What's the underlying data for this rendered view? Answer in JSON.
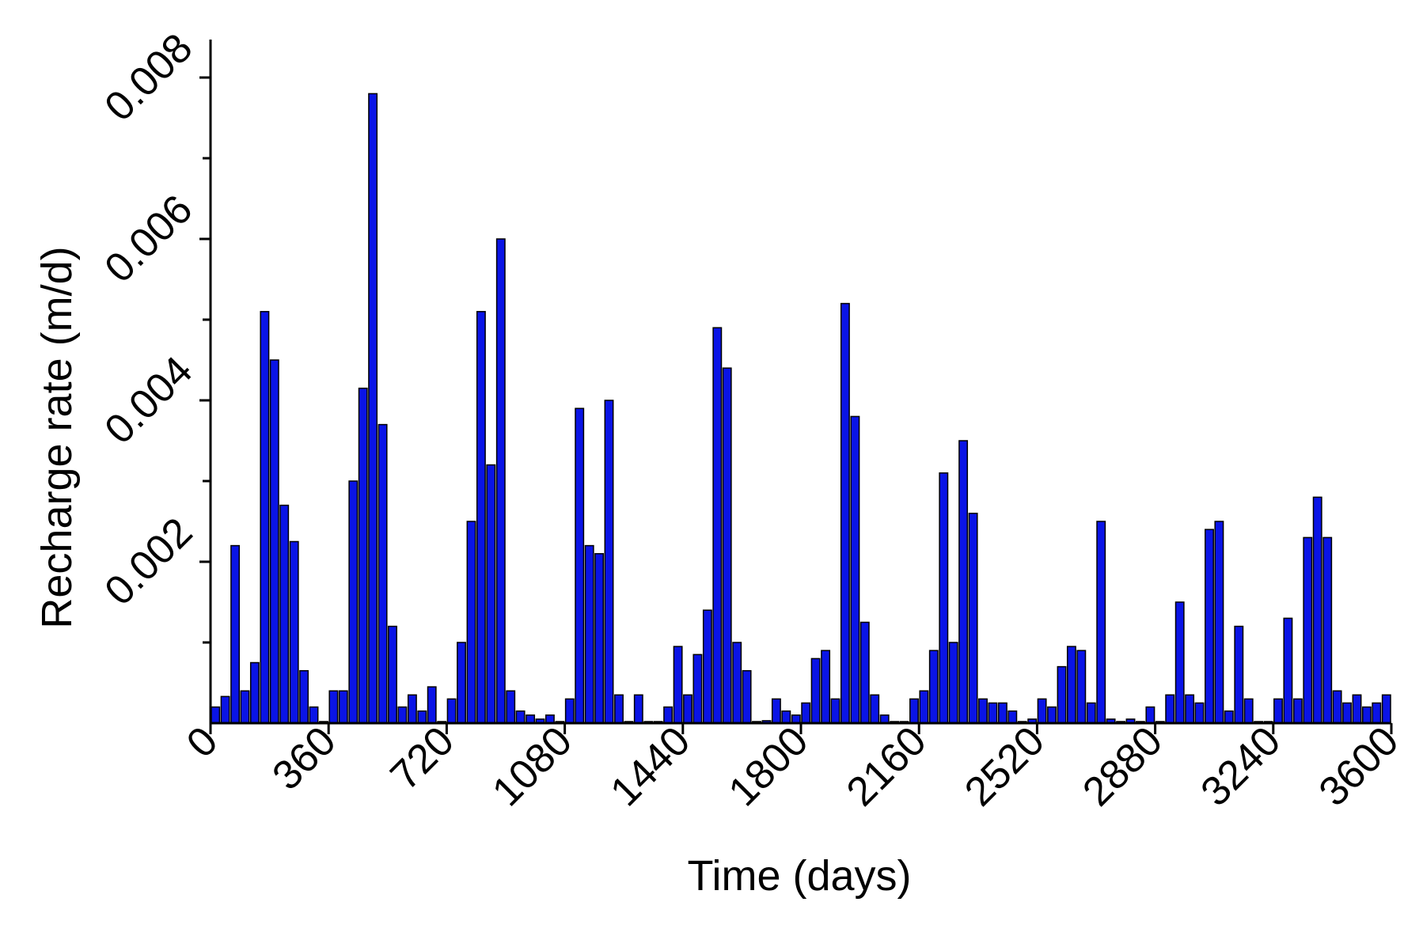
{
  "chart_data": {
    "type": "bar",
    "xlabel": "Time (days)",
    "ylabel": "Recharge  rate (m/d)",
    "xlim": [
      0,
      3600
    ],
    "ylim": [
      0,
      0.008
    ],
    "xticks": [
      "0",
      "360",
      "720",
      "1080",
      "1440",
      "1800",
      "2160",
      "2520",
      "2880",
      "3240",
      "3600"
    ],
    "yticks": [
      "0.002",
      "0.004",
      "0.006",
      "0.008"
    ],
    "grid": false,
    "bar_color": "#0a14e6",
    "bar_width_days": 30,
    "series": [
      {
        "x": [
          15,
          45,
          75,
          105,
          135,
          165,
          195,
          225,
          255,
          285,
          315,
          345,
          375,
          405,
          435,
          465,
          495,
          525,
          555,
          585,
          615,
          645,
          675,
          705,
          735,
          765,
          795,
          825,
          855,
          885,
          915,
          945,
          975,
          1005,
          1035,
          1065,
          1095,
          1125,
          1155,
          1185,
          1215,
          1245,
          1275,
          1305,
          1335,
          1365,
          1395,
          1425,
          1455,
          1485,
          1515,
          1545,
          1575,
          1605,
          1635,
          1665,
          1695,
          1725,
          1755,
          1785,
          1815,
          1845,
          1875,
          1905,
          1935,
          1965,
          1995,
          2025,
          2055,
          2085,
          2115,
          2145,
          2175,
          2205,
          2235,
          2265,
          2295,
          2325,
          2355,
          2385,
          2415,
          2445,
          2475,
          2505,
          2535,
          2565,
          2595,
          2625,
          2655,
          2685,
          2715,
          2745,
          2775,
          2805,
          2835,
          2865,
          2895,
          2925,
          2955,
          2985,
          3015,
          3045,
          3075,
          3105,
          3135,
          3165,
          3195,
          3225,
          3255,
          3285,
          3315,
          3345,
          3375,
          3405,
          3435,
          3465,
          3495,
          3525,
          3555,
          3585
        ],
        "values": [
          0.0002,
          0.00033,
          0.0022,
          0.0004,
          0.00075,
          0.0051,
          0.0045,
          0.0027,
          0.00225,
          0.00065,
          0.0002,
          2e-05,
          0.0004,
          0.0004,
          0.003,
          0.00415,
          0.0078,
          0.0037,
          0.0012,
          0.0002,
          0.00035,
          0.00015,
          0.00045,
          2e-05,
          0.0003,
          0.001,
          0.0025,
          0.0051,
          0.0032,
          0.006,
          0.0004,
          0.00015,
          0.0001,
          5e-05,
          0.0001,
          2e-05,
          0.0003,
          0.0039,
          0.0022,
          0.0021,
          0.004,
          0.00035,
          2e-05,
          0.00035,
          2e-05,
          2e-05,
          0.0002,
          0.00095,
          0.00035,
          0.00085,
          0.0014,
          0.0049,
          0.0044,
          0.001,
          0.00065,
          2e-05,
          3e-05,
          0.0003,
          0.00015,
          0.0001,
          0.00025,
          0.0008,
          0.0009,
          0.0003,
          0.0052,
          0.0038,
          0.00125,
          0.00035,
          0.0001,
          2e-05,
          2e-05,
          0.0003,
          0.0004,
          0.0009,
          0.0031,
          0.001,
          0.0035,
          0.0026,
          0.0003,
          0.00025,
          0.00025,
          0.00015,
          2e-05,
          5e-05,
          0.0003,
          0.0002,
          0.0007,
          0.00095,
          0.0009,
          0.00025,
          0.0025,
          5e-05,
          2e-05,
          5e-05,
          2e-05,
          0.0002,
          2e-05,
          0.00035,
          0.0015,
          0.00035,
          0.00025,
          0.0024,
          0.0025,
          0.00015,
          0.0012,
          0.0003,
          2e-05,
          2e-05,
          0.0003,
          0.0013,
          0.0003,
          0.0023,
          0.0028,
          0.0023,
          0.0004,
          0.00025,
          0.00035,
          0.0002,
          0.00025,
          0.00035
        ]
      }
    ]
  }
}
